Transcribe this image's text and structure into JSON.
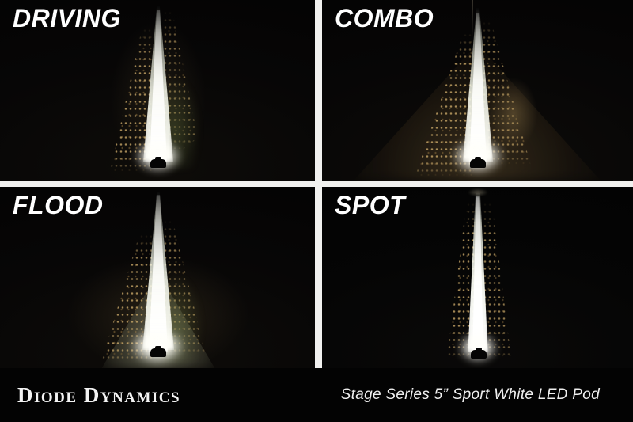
{
  "quads": [
    {
      "label": "DRIVING"
    },
    {
      "label": "COMBO"
    },
    {
      "label": "FLOOD"
    },
    {
      "label": "SPOT"
    }
  ],
  "footer": {
    "brand": "Diode Dynamics",
    "product": "Stage Series 5” Sport White LED Pod"
  },
  "colors": {
    "background": "#000000",
    "gutter": "#f1f1ef",
    "label_text": "#ffffff",
    "footer_background": "#030303",
    "footer_text": "#f3f3f3",
    "beam_core": "#ffffff",
    "warm_spill": "#987a48",
    "grass_spill": "#748848"
  }
}
